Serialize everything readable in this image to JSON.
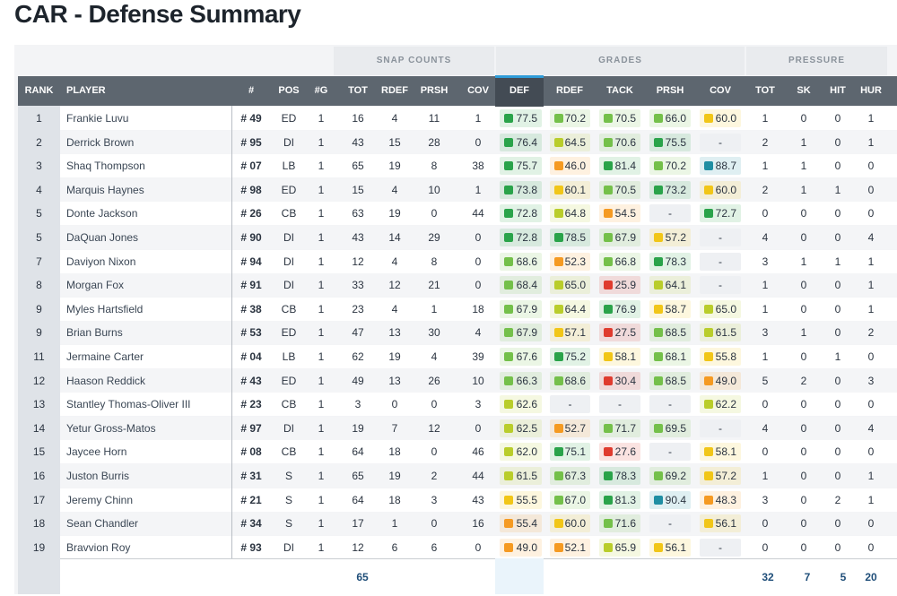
{
  "title": "CAR - Defense Summary",
  "groups": {
    "snap_counts": "SNAP COUNTS",
    "grades": "GRADES",
    "pressure": "PRESSURE"
  },
  "headers": {
    "rank": "RANK",
    "player": "PLAYER",
    "jersey": "#",
    "pos": "POS",
    "games": "#G",
    "snap_tot": "TOT",
    "snap_rdef": "RDEF",
    "snap_prsh": "PRSH",
    "snap_cov": "COV",
    "grade_def": "DEF",
    "grade_rdef": "RDEF",
    "grade_tack": "TACK",
    "grade_prsh": "PRSH",
    "grade_cov": "COV",
    "pr_tot": "TOT",
    "pr_sk": "SK",
    "pr_hit": "HIT",
    "pr_hur": "HUR"
  },
  "grade_colors": {
    "dark_green": "#2aa34a",
    "green": "#74c04a",
    "lime": "#b9cd2b",
    "yellow": "#f1c618",
    "orange": "#f59a22",
    "red": "#df3b2e",
    "teal": "#1f8ea3"
  },
  "rows": [
    {
      "rank": "1",
      "player": "Frankie Luvu",
      "jersey": "# 49",
      "pos": "ED",
      "g": "1",
      "tot": "16",
      "rdef": "4",
      "prsh": "11",
      "cov": "1",
      "def": "77.5",
      "grdef": "70.2",
      "tack": "70.5",
      "gprsh": "66.0",
      "gcov": "60.0",
      "ptot": "1",
      "sk": "0",
      "hit": "0",
      "hur": "1"
    },
    {
      "rank": "2",
      "player": "Derrick Brown",
      "jersey": "# 95",
      "pos": "DI",
      "g": "1",
      "tot": "43",
      "rdef": "15",
      "prsh": "28",
      "cov": "0",
      "def": "76.4",
      "grdef": "64.5",
      "tack": "70.6",
      "gprsh": "75.5",
      "gcov": "-",
      "ptot": "2",
      "sk": "1",
      "hit": "0",
      "hur": "1"
    },
    {
      "rank": "3",
      "player": "Shaq Thompson",
      "jersey": "# 07",
      "pos": "LB",
      "g": "1",
      "tot": "65",
      "rdef": "19",
      "prsh": "8",
      "cov": "38",
      "def": "75.7",
      "grdef": "46.0",
      "tack": "81.4",
      "gprsh": "70.2",
      "gcov": "88.7",
      "ptot": "1",
      "sk": "1",
      "hit": "0",
      "hur": "0"
    },
    {
      "rank": "4",
      "player": "Marquis Haynes",
      "jersey": "# 98",
      "pos": "ED",
      "g": "1",
      "tot": "15",
      "rdef": "4",
      "prsh": "10",
      "cov": "1",
      "def": "73.8",
      "grdef": "60.1",
      "tack": "70.5",
      "gprsh": "73.2",
      "gcov": "60.0",
      "ptot": "2",
      "sk": "1",
      "hit": "1",
      "hur": "0"
    },
    {
      "rank": "5",
      "player": "Donte Jackson",
      "jersey": "# 26",
      "pos": "CB",
      "g": "1",
      "tot": "63",
      "rdef": "19",
      "prsh": "0",
      "cov": "44",
      "def": "72.8",
      "grdef": "64.8",
      "tack": "54.5",
      "gprsh": "-",
      "gcov": "72.7",
      "ptot": "0",
      "sk": "0",
      "hit": "0",
      "hur": "0"
    },
    {
      "rank": "5",
      "player": "DaQuan Jones",
      "jersey": "# 90",
      "pos": "DI",
      "g": "1",
      "tot": "43",
      "rdef": "14",
      "prsh": "29",
      "cov": "0",
      "def": "72.8",
      "grdef": "78.5",
      "tack": "67.9",
      "gprsh": "57.2",
      "gcov": "-",
      "ptot": "4",
      "sk": "0",
      "hit": "0",
      "hur": "4"
    },
    {
      "rank": "7",
      "player": "Daviyon Nixon",
      "jersey": "# 94",
      "pos": "DI",
      "g": "1",
      "tot": "12",
      "rdef": "4",
      "prsh": "8",
      "cov": "0",
      "def": "68.6",
      "grdef": "52.3",
      "tack": "66.8",
      "gprsh": "78.3",
      "gcov": "-",
      "ptot": "3",
      "sk": "1",
      "hit": "1",
      "hur": "1"
    },
    {
      "rank": "8",
      "player": "Morgan Fox",
      "jersey": "# 91",
      "pos": "DI",
      "g": "1",
      "tot": "33",
      "rdef": "12",
      "prsh": "21",
      "cov": "0",
      "def": "68.4",
      "grdef": "65.0",
      "tack": "25.9",
      "gprsh": "64.1",
      "gcov": "-",
      "ptot": "1",
      "sk": "0",
      "hit": "0",
      "hur": "1"
    },
    {
      "rank": "9",
      "player": "Myles Hartsfield",
      "jersey": "# 38",
      "pos": "CB",
      "g": "1",
      "tot": "23",
      "rdef": "4",
      "prsh": "1",
      "cov": "18",
      "def": "67.9",
      "grdef": "64.4",
      "tack": "76.9",
      "gprsh": "58.7",
      "gcov": "65.0",
      "ptot": "1",
      "sk": "0",
      "hit": "0",
      "hur": "1"
    },
    {
      "rank": "9",
      "player": "Brian Burns",
      "jersey": "# 53",
      "pos": "ED",
      "g": "1",
      "tot": "47",
      "rdef": "13",
      "prsh": "30",
      "cov": "4",
      "def": "67.9",
      "grdef": "57.1",
      "tack": "27.5",
      "gprsh": "68.5",
      "gcov": "61.5",
      "ptot": "3",
      "sk": "1",
      "hit": "0",
      "hur": "2"
    },
    {
      "rank": "11",
      "player": "Jermaine Carter",
      "jersey": "# 04",
      "pos": "LB",
      "g": "1",
      "tot": "62",
      "rdef": "19",
      "prsh": "4",
      "cov": "39",
      "def": "67.6",
      "grdef": "75.2",
      "tack": "58.1",
      "gprsh": "68.1",
      "gcov": "55.8",
      "ptot": "1",
      "sk": "0",
      "hit": "1",
      "hur": "0"
    },
    {
      "rank": "12",
      "player": "Haason Reddick",
      "jersey": "# 43",
      "pos": "ED",
      "g": "1",
      "tot": "49",
      "rdef": "13",
      "prsh": "26",
      "cov": "10",
      "def": "66.3",
      "grdef": "68.6",
      "tack": "30.4",
      "gprsh": "68.5",
      "gcov": "49.0",
      "ptot": "5",
      "sk": "2",
      "hit": "0",
      "hur": "3"
    },
    {
      "rank": "13",
      "player": "Stantley Thomas-Oliver III",
      "jersey": "# 23",
      "pos": "CB",
      "g": "1",
      "tot": "3",
      "rdef": "0",
      "prsh": "0",
      "cov": "3",
      "def": "62.6",
      "grdef": "-",
      "tack": "-",
      "gprsh": "-",
      "gcov": "62.2",
      "ptot": "0",
      "sk": "0",
      "hit": "0",
      "hur": "0"
    },
    {
      "rank": "14",
      "player": "Yetur Gross-Matos",
      "jersey": "# 97",
      "pos": "DI",
      "g": "1",
      "tot": "19",
      "rdef": "7",
      "prsh": "12",
      "cov": "0",
      "def": "62.5",
      "grdef": "52.7",
      "tack": "71.7",
      "gprsh": "69.5",
      "gcov": "-",
      "ptot": "4",
      "sk": "0",
      "hit": "0",
      "hur": "4"
    },
    {
      "rank": "15",
      "player": "Jaycee Horn",
      "jersey": "# 08",
      "pos": "CB",
      "g": "1",
      "tot": "64",
      "rdef": "18",
      "prsh": "0",
      "cov": "46",
      "def": "62.0",
      "grdef": "75.1",
      "tack": "27.6",
      "gprsh": "-",
      "gcov": "58.1",
      "ptot": "0",
      "sk": "0",
      "hit": "0",
      "hur": "0"
    },
    {
      "rank": "16",
      "player": "Juston Burris",
      "jersey": "# 31",
      "pos": "S",
      "g": "1",
      "tot": "65",
      "rdef": "19",
      "prsh": "2",
      "cov": "44",
      "def": "61.5",
      "grdef": "67.3",
      "tack": "78.3",
      "gprsh": "69.2",
      "gcov": "57.2",
      "ptot": "1",
      "sk": "0",
      "hit": "0",
      "hur": "1"
    },
    {
      "rank": "17",
      "player": "Jeremy Chinn",
      "jersey": "# 21",
      "pos": "S",
      "g": "1",
      "tot": "64",
      "rdef": "18",
      "prsh": "3",
      "cov": "43",
      "def": "55.5",
      "grdef": "67.0",
      "tack": "81.3",
      "gprsh": "90.4",
      "gcov": "48.3",
      "ptot": "3",
      "sk": "0",
      "hit": "2",
      "hur": "1"
    },
    {
      "rank": "18",
      "player": "Sean Chandler",
      "jersey": "# 34",
      "pos": "S",
      "g": "1",
      "tot": "17",
      "rdef": "1",
      "prsh": "0",
      "cov": "16",
      "def": "55.4",
      "grdef": "60.0",
      "tack": "71.6",
      "gprsh": "-",
      "gcov": "56.1",
      "ptot": "0",
      "sk": "0",
      "hit": "0",
      "hur": "0"
    },
    {
      "rank": "19",
      "player": "Bravvion Roy",
      "jersey": "# 93",
      "pos": "DI",
      "g": "1",
      "tot": "12",
      "rdef": "6",
      "prsh": "6",
      "cov": "0",
      "def": "49.0",
      "grdef": "52.1",
      "tack": "65.9",
      "gprsh": "56.1",
      "gcov": "-",
      "ptot": "0",
      "sk": "0",
      "hit": "0",
      "hur": "0"
    }
  ],
  "totals": {
    "snap_tot": "65",
    "pr_tot": "32",
    "pr_sk": "7",
    "pr_hit": "5",
    "pr_hur": "20"
  }
}
